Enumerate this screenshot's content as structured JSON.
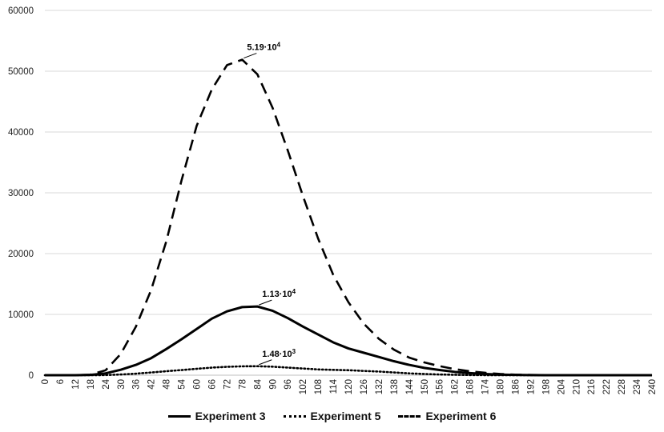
{
  "chart_data": {
    "type": "line",
    "title": "",
    "xlabel": "",
    "ylabel": "",
    "xlim": [
      0,
      240
    ],
    "ylim": [
      0,
      60000
    ],
    "x_ticks": [
      0,
      6,
      12,
      18,
      24,
      30,
      36,
      42,
      48,
      54,
      60,
      66,
      72,
      78,
      84,
      90,
      96,
      102,
      108,
      114,
      120,
      126,
      132,
      138,
      144,
      150,
      156,
      162,
      168,
      174,
      180,
      186,
      192,
      198,
      204,
      210,
      216,
      222,
      228,
      234,
      240
    ],
    "y_ticks": [
      0,
      10000,
      20000,
      30000,
      40000,
      50000,
      60000
    ],
    "grid": "horizontal",
    "legend_position": "bottom",
    "x": [
      0,
      6,
      12,
      18,
      24,
      30,
      36,
      42,
      48,
      54,
      60,
      66,
      72,
      78,
      84,
      90,
      96,
      102,
      108,
      114,
      120,
      126,
      132,
      138,
      144,
      150,
      156,
      162,
      168,
      174,
      180,
      186,
      192,
      198,
      204,
      210,
      216,
      222,
      228,
      234,
      240
    ],
    "series": [
      {
        "name": "Experiment 3",
        "style": "solid",
        "color": "#000000",
        "values": [
          0,
          0,
          0,
          50,
          300,
          900,
          1700,
          2800,
          4300,
          5900,
          7600,
          9300,
          10500,
          11200,
          11300,
          10600,
          9400,
          8000,
          6700,
          5400,
          4400,
          3700,
          3000,
          2300,
          1700,
          1200,
          850,
          550,
          350,
          200,
          100,
          50,
          20,
          0,
          0,
          0,
          0,
          0,
          0,
          0,
          0
        ]
      },
      {
        "name": "Experiment 5",
        "style": "dotted",
        "color": "#000000",
        "values": [
          0,
          0,
          0,
          0,
          20,
          120,
          250,
          450,
          650,
          850,
          1050,
          1250,
          1380,
          1460,
          1480,
          1400,
          1250,
          1100,
          950,
          880,
          820,
          700,
          600,
          450,
          300,
          200,
          120,
          70,
          30,
          10,
          0,
          0,
          0,
          0,
          0,
          0,
          0,
          0,
          0,
          0,
          0
        ]
      },
      {
        "name": "Experiment 6",
        "style": "dashed",
        "color": "#000000",
        "values": [
          0,
          0,
          0,
          100,
          800,
          3500,
          8000,
          14000,
          22000,
          32000,
          41000,
          47000,
          51000,
          51900,
          49500,
          44000,
          37000,
          29500,
          22500,
          16500,
          12000,
          8500,
          6000,
          4200,
          2900,
          2100,
          1500,
          1000,
          650,
          400,
          200,
          100,
          50,
          0,
          0,
          0,
          0,
          0,
          0,
          0,
          0
        ]
      }
    ],
    "annotations": [
      {
        "series": "Experiment 6",
        "x": 78,
        "y": 51900,
        "base": "5.19·10",
        "exp": "4"
      },
      {
        "series": "Experiment 3",
        "x": 84,
        "y": 11300,
        "base": "1.13·10",
        "exp": "4"
      },
      {
        "series": "Experiment 5",
        "x": 84,
        "y": 1480,
        "base": "1.48·10",
        "exp": "3"
      }
    ]
  },
  "legend": {
    "items": [
      {
        "label": "Experiment 3",
        "style": "solid"
      },
      {
        "label": "Experiment 5",
        "style": "dotted"
      },
      {
        "label": "Experiment 6",
        "style": "dashed"
      }
    ]
  }
}
